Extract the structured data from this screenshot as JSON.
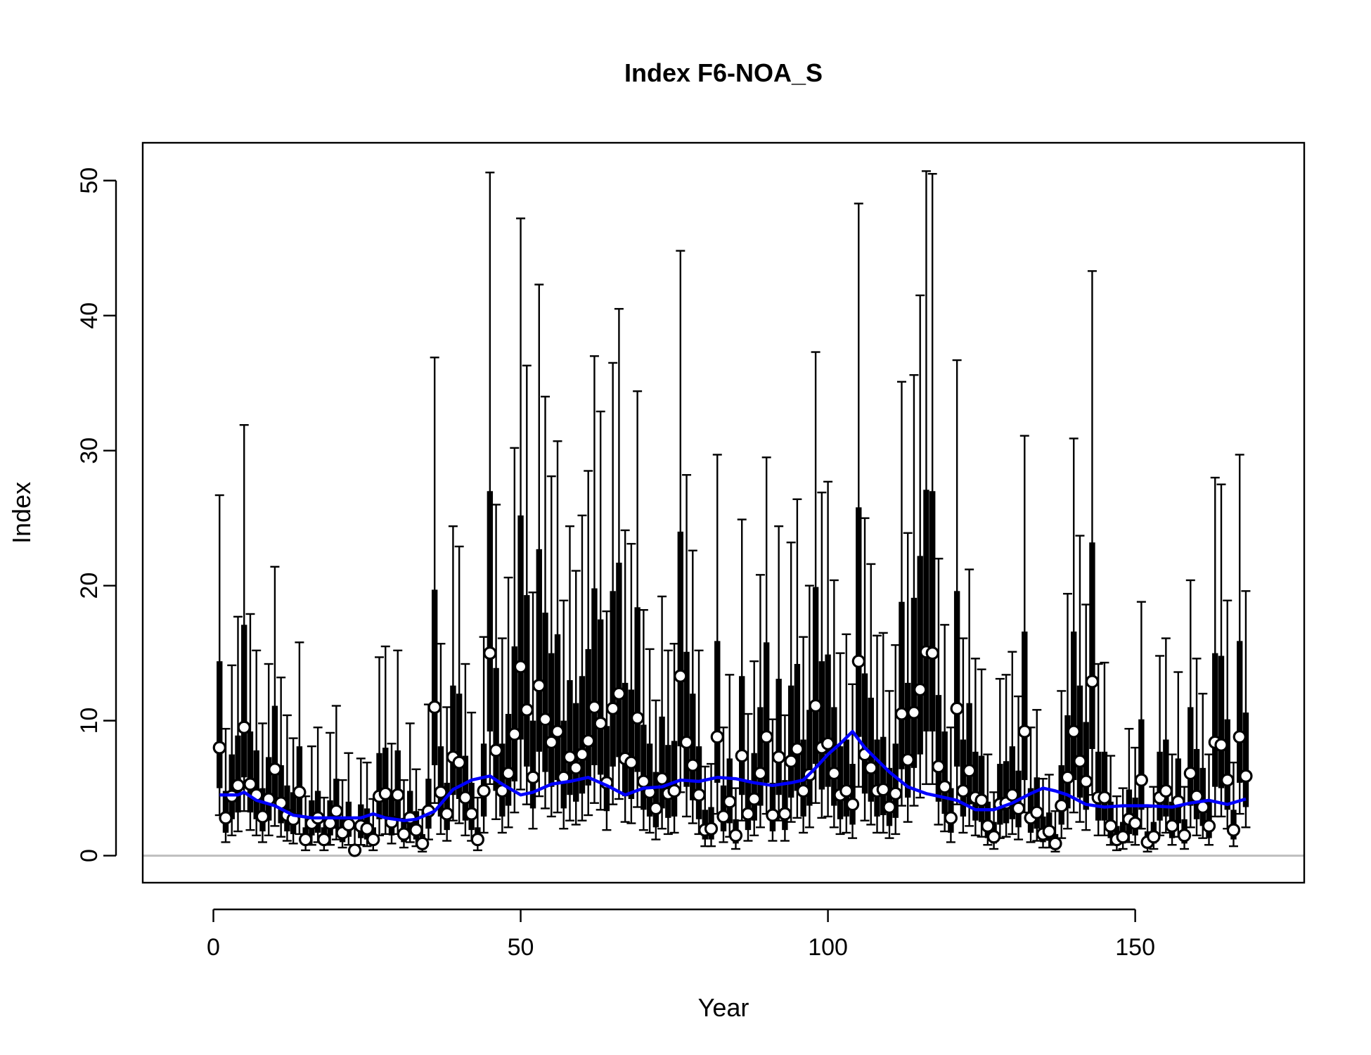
{
  "chart_data": {
    "type": "box",
    "title": "Index F6-NOA_S",
    "xlabel": "Year",
    "ylabel": "Index",
    "xlim": [
      -11.5,
      177.5
    ],
    "ylim": [
      -2,
      52.8
    ],
    "x_ticks": [
      0,
      50,
      100,
      150
    ],
    "y_ticks": [
      0,
      10,
      20,
      30,
      40,
      50
    ],
    "reference_line_y": 0,
    "colors": {
      "box": "#000000",
      "median_point_fill": "#ffffff",
      "median_point_stroke": "#000000",
      "trend": "#0000ff",
      "reference_line": "#bebebe"
    },
    "series": [
      {
        "name": "",
        "kind": "boxes",
        "x": [
          1,
          2,
          3,
          4,
          5,
          6,
          7,
          8,
          9,
          10,
          11,
          12,
          13,
          14,
          15,
          16,
          17,
          18,
          19,
          20,
          21,
          22,
          23,
          24,
          25,
          26,
          27,
          28,
          29,
          30,
          31,
          32,
          33,
          34,
          35,
          36,
          37,
          38,
          39,
          40,
          41,
          42,
          43,
          44,
          45,
          46,
          47,
          48,
          49,
          50,
          51,
          52,
          53,
          54,
          55,
          56,
          57,
          58,
          59,
          60,
          61,
          62,
          63,
          64,
          65,
          66,
          67,
          68,
          69,
          70,
          71,
          72,
          73,
          74,
          75,
          76,
          77,
          78,
          79,
          80,
          81,
          82,
          83,
          84,
          85,
          86,
          87,
          88,
          89,
          90,
          91,
          92,
          93,
          94,
          95,
          96,
          97,
          98,
          99,
          100,
          101,
          102,
          103,
          104,
          105,
          106,
          107,
          108,
          109,
          110,
          111,
          112,
          113,
          114,
          115,
          116,
          117,
          118,
          119,
          120,
          121,
          122,
          123,
          124,
          125,
          126,
          127,
          128,
          129,
          130,
          131,
          132,
          133,
          134,
          135,
          136,
          137,
          138,
          139,
          140,
          141,
          142,
          143,
          144,
          145,
          146,
          147,
          148,
          149,
          150,
          151,
          152,
          153,
          154,
          155,
          156,
          157,
          158,
          159,
          160,
          161,
          162,
          163,
          164,
          165,
          166,
          167,
          168
        ],
        "median": [
          8.0,
          2.8,
          4.4,
          5.2,
          9.5,
          5.3,
          4.5,
          2.9,
          4.2,
          6.4,
          3.9,
          3.0,
          2.7,
          4.7,
          1.2,
          2.4,
          2.8,
          1.2,
          2.4,
          3.3,
          1.7,
          2.3,
          0.4,
          2.2,
          2.0,
          1.2,
          4.4,
          4.6,
          2.5,
          4.5,
          1.6,
          2.8,
          1.9,
          0.9,
          3.3,
          11.0,
          4.7,
          3.1,
          7.3,
          6.9,
          4.3,
          3.1,
          1.2,
          4.8,
          15.0,
          7.8,
          4.8,
          6.1,
          9.0,
          14.0,
          10.8,
          5.8,
          12.6,
          10.1,
          8.4,
          9.2,
          5.8,
          7.3,
          6.5,
          7.5,
          8.5,
          11.0,
          9.8,
          5.4,
          10.9,
          12.0,
          7.2,
          6.9,
          10.2,
          5.5,
          4.7,
          3.5,
          5.7,
          4.6,
          4.8,
          13.3,
          8.4,
          6.7,
          4.5,
          1.9,
          2.0,
          8.8,
          2.9,
          4.0,
          1.5,
          7.4,
          3.1,
          4.2,
          6.1,
          8.8,
          3.0,
          7.3,
          3.1,
          7.0,
          7.9,
          4.8,
          6.0,
          11.1,
          8.0,
          8.3,
          6.1,
          4.5,
          4.8,
          3.8,
          14.4,
          7.5,
          6.5,
          4.8,
          4.9,
          3.6,
          4.6,
          10.5,
          7.1,
          10.6,
          12.3,
          15.1,
          15.0,
          6.6,
          5.1,
          2.8,
          10.9,
          4.8,
          6.3,
          4.3,
          4.1,
          2.2,
          1.4,
          3.8,
          3.9,
          4.5,
          3.5,
          9.2,
          2.8,
          3.2,
          1.6,
          1.8,
          0.9,
          3.7,
          5.8,
          9.2,
          7.0,
          5.5,
          12.9,
          4.3,
          4.3,
          2.2,
          1.2,
          1.4,
          2.7,
          2.4,
          5.6,
          1.0,
          1.4,
          4.3,
          4.8,
          2.2,
          4.0,
          1.5,
          6.1,
          4.4,
          3.6,
          2.2,
          8.4,
          8.2,
          5.6,
          1.9,
          8.8,
          5.9
        ],
        "q1": [
          5.0,
          1.7,
          2.7,
          3.2,
          5.8,
          3.2,
          2.7,
          1.8,
          2.6,
          3.9,
          2.4,
          1.8,
          1.6,
          2.9,
          0.8,
          1.5,
          1.7,
          0.8,
          1.5,
          2.0,
          1.0,
          1.4,
          0.3,
          1.3,
          1.2,
          0.8,
          2.7,
          2.8,
          1.5,
          2.7,
          1.0,
          1.7,
          1.2,
          0.6,
          2.0,
          6.7,
          2.9,
          1.9,
          4.5,
          4.2,
          2.6,
          1.9,
          0.8,
          2.9,
          9.2,
          4.8,
          2.9,
          3.7,
          5.5,
          8.6,
          6.6,
          3.5,
          7.7,
          6.2,
          5.1,
          5.6,
          3.5,
          4.5,
          4.0,
          4.6,
          5.2,
          6.7,
          6.0,
          3.3,
          6.6,
          7.3,
          4.4,
          4.2,
          6.2,
          3.4,
          2.9,
          2.1,
          3.5,
          2.8,
          2.9,
          8.1,
          5.1,
          4.1,
          2.7,
          1.2,
          1.2,
          5.4,
          1.8,
          2.4,
          0.9,
          4.5,
          1.9,
          2.6,
          3.7,
          5.4,
          1.8,
          4.5,
          1.9,
          4.3,
          4.8,
          2.9,
          3.7,
          6.8,
          4.9,
          5.1,
          3.7,
          2.7,
          2.9,
          2.3,
          8.8,
          4.6,
          4.0,
          2.9,
          3.0,
          2.2,
          2.8,
          6.4,
          4.3,
          6.5,
          7.5,
          9.2,
          9.2,
          4.0,
          3.1,
          1.7,
          6.6,
          2.9,
          3.8,
          2.6,
          2.5,
          1.3,
          0.9,
          2.3,
          2.4,
          2.7,
          2.1,
          5.6,
          1.7,
          2.0,
          1.0,
          1.1,
          0.6,
          2.3,
          3.5,
          5.6,
          4.3,
          3.4,
          7.9,
          2.6,
          2.6,
          1.3,
          0.8,
          0.9,
          1.6,
          1.5,
          3.4,
          0.6,
          0.9,
          2.6,
          2.9,
          1.3,
          2.4,
          0.9,
          3.7,
          2.7,
          2.2,
          1.3,
          5.1,
          5.0,
          3.4,
          1.2,
          5.4,
          3.6
        ],
        "q3": [
          14.4,
          4.8,
          7.5,
          8.9,
          17.1,
          9.2,
          7.8,
          5.0,
          7.3,
          11.1,
          6.7,
          5.2,
          4.7,
          8.1,
          2.1,
          4.1,
          4.8,
          2.1,
          4.1,
          5.7,
          2.9,
          4.0,
          0.7,
          3.8,
          3.5,
          2.1,
          7.6,
          8.0,
          4.3,
          7.8,
          2.8,
          4.8,
          3.3,
          1.6,
          5.7,
          19.7,
          8.1,
          5.4,
          12.6,
          12.0,
          7.4,
          5.4,
          2.1,
          8.3,
          27.0,
          13.9,
          8.3,
          10.5,
          15.5,
          25.2,
          19.3,
          10.0,
          22.7,
          18.0,
          15.0,
          16.4,
          10.0,
          13.0,
          11.3,
          13.3,
          15.3,
          19.8,
          17.5,
          9.6,
          19.6,
          21.7,
          12.8,
          12.3,
          18.4,
          9.7,
          8.3,
          6.2,
          10.3,
          8.2,
          8.5,
          24.0,
          15.1,
          12.0,
          8.1,
          3.4,
          3.6,
          15.9,
          5.2,
          7.2,
          2.7,
          13.3,
          5.6,
          7.6,
          11.0,
          15.8,
          5.4,
          13.1,
          5.6,
          12.6,
          14.2,
          8.6,
          10.8,
          19.9,
          14.4,
          14.9,
          11.0,
          8.1,
          8.6,
          6.8,
          25.8,
          13.5,
          11.7,
          8.6,
          8.8,
          6.5,
          8.3,
          18.8,
          12.8,
          19.1,
          22.2,
          27.1,
          27.0,
          11.9,
          9.2,
          5.0,
          19.6,
          8.6,
          11.3,
          7.7,
          7.4,
          4.0,
          2.5,
          6.8,
          7.0,
          8.1,
          6.3,
          16.6,
          5.0,
          5.8,
          2.9,
          3.2,
          1.6,
          6.7,
          10.4,
          16.6,
          12.6,
          9.9,
          23.2,
          7.7,
          7.7,
          4.0,
          2.2,
          2.5,
          4.9,
          4.3,
          10.1,
          1.8,
          2.5,
          7.7,
          8.6,
          4.0,
          7.2,
          2.7,
          11.0,
          7.9,
          6.5,
          4.0,
          15.0,
          14.8,
          10.1,
          3.4,
          15.9,
          10.6
        ],
        "lo": [
          3.0,
          1.0,
          1.5,
          1.8,
          3.3,
          1.9,
          1.5,
          1.0,
          1.5,
          2.2,
          1.4,
          1.1,
          0.9,
          1.6,
          0.4,
          0.8,
          1.0,
          0.4,
          0.8,
          1.2,
          0.6,
          0.8,
          0.1,
          0.8,
          0.7,
          0.4,
          1.5,
          1.6,
          0.9,
          1.6,
          0.6,
          1.0,
          0.7,
          0.3,
          1.2,
          3.9,
          1.6,
          1.1,
          2.6,
          2.4,
          1.5,
          1.1,
          0.4,
          1.7,
          5.3,
          2.7,
          1.7,
          2.1,
          3.2,
          4.9,
          3.8,
          2.0,
          4.4,
          3.5,
          2.9,
          3.2,
          2.0,
          2.6,
          2.3,
          2.6,
          3.0,
          3.9,
          3.4,
          1.9,
          3.8,
          4.2,
          2.5,
          2.4,
          3.6,
          1.9,
          1.7,
          1.2,
          2.0,
          1.6,
          1.7,
          4.7,
          2.9,
          2.4,
          1.6,
          0.7,
          0.7,
          3.1,
          1.0,
          1.4,
          0.5,
          2.6,
          1.1,
          1.5,
          2.1,
          3.1,
          1.1,
          2.6,
          1.1,
          2.5,
          2.8,
          1.7,
          2.1,
          3.9,
          2.8,
          2.9,
          2.1,
          1.6,
          1.7,
          1.3,
          5.1,
          2.6,
          2.3,
          1.7,
          1.7,
          1.3,
          1.6,
          3.7,
          2.5,
          3.7,
          4.3,
          5.3,
          5.3,
          2.3,
          1.8,
          1.0,
          3.8,
          1.7,
          2.2,
          1.5,
          1.4,
          0.8,
          0.5,
          1.3,
          1.4,
          1.6,
          1.2,
          3.2,
          1.0,
          1.1,
          0.6,
          0.6,
          0.3,
          1.3,
          2.0,
          3.2,
          2.5,
          1.9,
          4.5,
          1.5,
          1.5,
          0.8,
          0.4,
          0.5,
          1.0,
          0.8,
          2.0,
          0.3,
          0.5,
          1.5,
          1.7,
          0.8,
          1.4,
          0.5,
          2.1,
          1.5,
          1.3,
          0.8,
          2.9,
          2.9,
          2.0,
          0.7,
          3.1,
          2.1
        ],
        "hi": [
          26.7,
          9.4,
          14.1,
          17.7,
          31.9,
          17.9,
          15.2,
          9.8,
          14.2,
          21.4,
          13.2,
          10.4,
          8.7,
          15.8,
          4.4,
          8.1,
          9.5,
          4.3,
          9.1,
          11.1,
          5.6,
          7.6,
          2.1,
          7.2,
          6.9,
          4.2,
          14.7,
          15.5,
          8.3,
          15.2,
          5.6,
          9.8,
          6.4,
          3.4,
          11.2,
          36.9,
          15.7,
          11.0,
          24.4,
          22.9,
          14.2,
          10.6,
          4.3,
          16.2,
          50.6,
          26.0,
          16.1,
          20.6,
          30.2,
          47.2,
          36.3,
          19.5,
          42.3,
          34.0,
          28.1,
          30.7,
          18.9,
          24.4,
          21.1,
          25.2,
          28.5,
          37.0,
          32.9,
          18.1,
          36.5,
          40.5,
          24.1,
          23.1,
          34.4,
          18.2,
          15.3,
          11.5,
          19.2,
          15.2,
          15.7,
          44.8,
          28.2,
          22.6,
          15.2,
          6.6,
          6.8,
          29.7,
          9.5,
          13.4,
          5.0,
          24.9,
          10.5,
          14.4,
          20.8,
          29.5,
          10.1,
          24.4,
          10.4,
          23.2,
          26.4,
          16.2,
          20.0,
          37.3,
          26.9,
          27.7,
          20.4,
          15.0,
          16.4,
          12.7,
          48.3,
          25.0,
          21.6,
          16.3,
          16.5,
          12.2,
          15.6,
          35.1,
          23.9,
          35.6,
          41.5,
          50.7,
          50.5,
          22.0,
          17.1,
          9.5,
          36.7,
          16.1,
          21.2,
          14.6,
          13.8,
          7.5,
          4.7,
          13.1,
          13.4,
          15.1,
          11.8,
          31.1,
          9.5,
          10.8,
          5.7,
          6.0,
          3.3,
          12.2,
          19.4,
          30.9,
          23.7,
          18.6,
          43.3,
          14.2,
          14.3,
          7.4,
          4.4,
          5.0,
          9.4,
          8.0,
          18.8,
          3.6,
          5.1,
          14.8,
          16.1,
          7.5,
          13.6,
          5.1,
          20.4,
          14.6,
          12.0,
          7.5,
          28.0,
          27.5,
          18.9,
          6.9,
          29.7,
          19.6
        ]
      },
      {
        "name": "",
        "kind": "trend",
        "x": [
          1,
          4,
          5,
          7,
          10,
          13,
          16,
          19,
          24,
          26,
          28,
          31,
          33,
          36,
          39,
          42,
          45,
          47,
          50,
          52,
          55,
          58,
          61,
          64,
          67,
          70,
          73,
          76,
          79,
          82,
          85,
          88,
          91,
          94,
          96,
          98,
          100,
          102,
          104,
          106,
          108,
          110,
          113,
          116,
          118,
          121,
          124,
          127,
          130,
          133,
          135,
          137,
          139,
          142,
          145,
          148,
          152,
          156,
          159,
          162,
          165,
          168
        ],
        "y": [
          4.5,
          4.5,
          4.7,
          4.1,
          3.7,
          3.0,
          2.8,
          2.8,
          2.8,
          3.1,
          2.8,
          2.6,
          2.7,
          3.3,
          4.9,
          5.6,
          5.9,
          5.3,
          4.5,
          4.7,
          5.3,
          5.5,
          5.8,
          5.2,
          4.5,
          5.0,
          5.1,
          5.6,
          5.5,
          5.8,
          5.7,
          5.4,
          5.2,
          5.4,
          5.6,
          6.5,
          7.5,
          8.3,
          9.2,
          8.0,
          7.1,
          6.2,
          5.1,
          4.6,
          4.4,
          4.1,
          3.4,
          3.4,
          3.9,
          4.6,
          5.0,
          4.8,
          4.5,
          3.8,
          3.6,
          3.7,
          3.7,
          3.6,
          3.9,
          4.1,
          3.8,
          4.2
        ]
      }
    ]
  }
}
